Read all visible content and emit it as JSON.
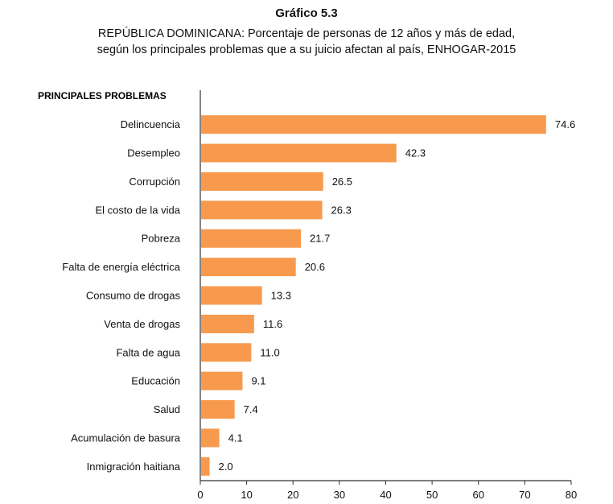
{
  "chart_data": {
    "type": "bar",
    "orientation": "horizontal",
    "title": "Gráfico 5.3",
    "subtitle_lines": [
      "REPÚBLICA DOMINICANA: Porcentaje de personas de 12 años y más de edad,",
      "según los principales problemas que a su juicio afectan al país, ENHOGAR-2015"
    ],
    "category_header": "PRINCIPALES PROBLEMAS",
    "categories": [
      "Delincuencia",
      "Desempleo",
      "Corrupción",
      "El costo de la vida",
      "Pobreza",
      "Falta de energía eléctrica",
      "Consumo de drogas",
      "Venta de drogas",
      "Falta de agua",
      "Educación",
      "Salud",
      "Acumulación de basura",
      "Inmigración haitiana"
    ],
    "values": [
      74.6,
      42.3,
      26.5,
      26.3,
      21.7,
      20.6,
      13.3,
      11.6,
      11.0,
      9.1,
      7.4,
      4.1,
      2.0
    ],
    "value_labels": [
      "74.6",
      "42.3",
      "26.5",
      "26.3",
      "21.7",
      "20.6",
      "13.3",
      "11.6",
      "11.0",
      "9.1",
      "7.4",
      "4.1",
      "2.0"
    ],
    "xlim": [
      0,
      80
    ],
    "xticks": [
      0,
      10,
      20,
      30,
      40,
      50,
      60,
      70,
      80
    ],
    "bar_color": "#f79a4e",
    "grid": false
  }
}
